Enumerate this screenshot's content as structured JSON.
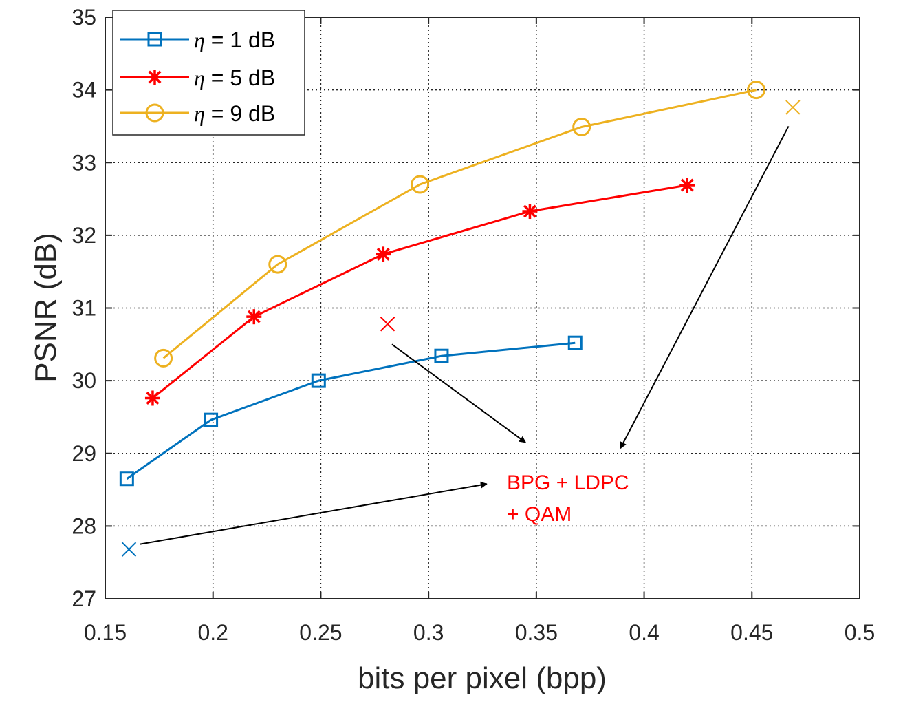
{
  "chart_data": {
    "type": "line",
    "xlabel": "bits per pixel (bpp)",
    "ylabel": "PSNR (dB)",
    "xlim": [
      0.15,
      0.5
    ],
    "ylim": [
      27,
      35
    ],
    "xticks": [
      0.15,
      0.2,
      0.25,
      0.3,
      0.35,
      0.4,
      0.45,
      0.5
    ],
    "xtick_labels": [
      "0.15",
      "0.2",
      "0.25",
      "0.3",
      "0.35",
      "0.4",
      "0.45",
      "0.5"
    ],
    "yticks": [
      27,
      28,
      29,
      30,
      31,
      32,
      33,
      34,
      35
    ],
    "ytick_labels": [
      "27",
      "28",
      "29",
      "30",
      "31",
      "32",
      "33",
      "34",
      "35"
    ],
    "grid": true,
    "legend_position": "top-left",
    "series": [
      {
        "name_symbol": "η",
        "name_rest": " = 1 dB",
        "color": "#0072BD",
        "marker": "square",
        "x": [
          0.16,
          0.199,
          0.249,
          0.306,
          0.368
        ],
        "y": [
          28.65,
          29.46,
          30.0,
          30.34,
          30.52
        ]
      },
      {
        "name_symbol": "η",
        "name_rest": " = 5 dB",
        "color": "#FF0000",
        "marker": "asterisk",
        "x": [
          0.172,
          0.219,
          0.279,
          0.347,
          0.42
        ],
        "y": [
          29.76,
          30.88,
          31.74,
          32.33,
          32.69
        ]
      },
      {
        "name_symbol": "η",
        "name_rest": " = 9 dB",
        "color": "#EDB120",
        "marker": "circle",
        "x": [
          0.177,
          0.23,
          0.296,
          0.371,
          0.452
        ],
        "y": [
          30.31,
          31.6,
          32.7,
          33.49,
          34.0
        ]
      }
    ],
    "baseline_points": [
      {
        "x": 0.161,
        "y": 27.68,
        "color": "#0072BD"
      },
      {
        "x": 0.281,
        "y": 30.78,
        "color": "#FF0000"
      },
      {
        "x": 0.469,
        "y": 33.76,
        "color": "#EDB120"
      }
    ],
    "annotation": {
      "lines": [
        "BPG + LDPC",
        "+ QAM"
      ],
      "color": "#FF0000",
      "arrows": [
        {
          "from": [
            0.166,
            27.75
          ],
          "to": [
            0.327,
            28.58
          ]
        },
        {
          "from": [
            0.283,
            30.5
          ],
          "to": [
            0.345,
            29.15
          ]
        },
        {
          "from": [
            0.467,
            33.5
          ],
          "to": [
            0.389,
            29.07
          ]
        }
      ]
    }
  }
}
